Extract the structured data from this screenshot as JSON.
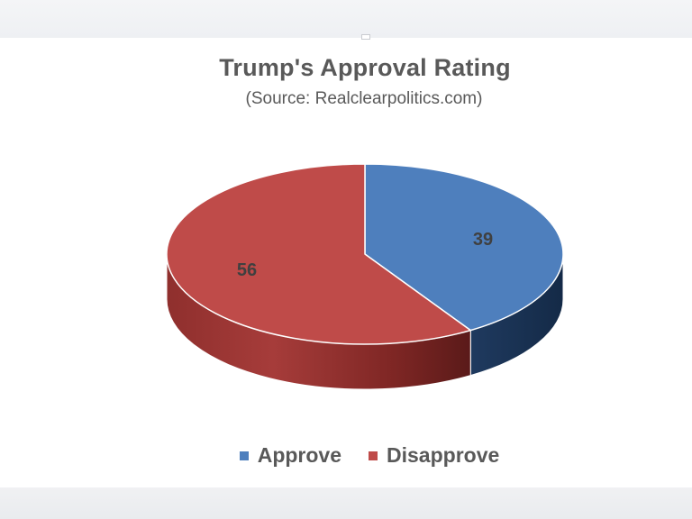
{
  "chart_data": {
    "type": "pie",
    "style": "3d",
    "title": "Trump's Approval Rating",
    "subtitle": "(Source: Realclearpolitics.com)",
    "categories": [
      "Approve",
      "Disapprove"
    ],
    "values": [
      39,
      56
    ],
    "data_labels": [
      "39",
      "56"
    ],
    "colors": [
      "#4e7fbd",
      "#bf4b49"
    ],
    "legend": {
      "position": "bottom",
      "entries": [
        "Approve",
        "Disapprove"
      ]
    }
  }
}
